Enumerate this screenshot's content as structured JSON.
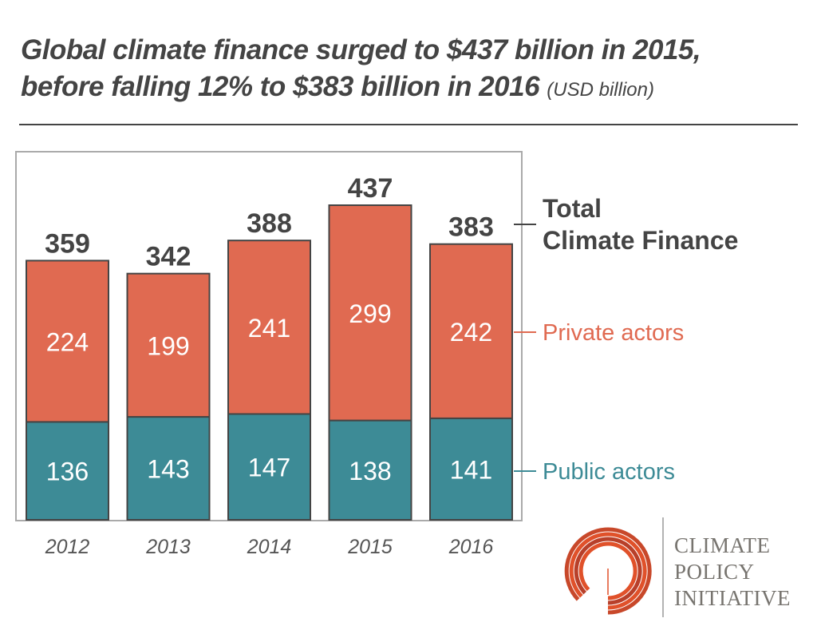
{
  "title": {
    "line1": "Global climate finance surged to $437 billion in 2015,",
    "line2": "before falling 12% to $383 billion in 2016",
    "unit": "(USD billion)"
  },
  "chart_data": {
    "type": "bar",
    "stacked": true,
    "categories": [
      "2012",
      "2013",
      "2014",
      "2015",
      "2016"
    ],
    "series": [
      {
        "name": "Public actors",
        "values": [
          136,
          143,
          147,
          138,
          141
        ],
        "color": "#3d8b96"
      },
      {
        "name": "Private actors",
        "values": [
          224,
          199,
          241,
          299,
          242
        ],
        "color": "#e06a51"
      }
    ],
    "totals": [
      359,
      342,
      388,
      437,
      383
    ],
    "totals_label": [
      "Total",
      "Climate Finance"
    ],
    "ylim": [
      0,
      510
    ],
    "grid": false,
    "legend_placement": "right"
  },
  "logo": {
    "lines": [
      "CLIMATE",
      "POLICY",
      "INITIATIVE"
    ],
    "color": "#e0512a"
  }
}
